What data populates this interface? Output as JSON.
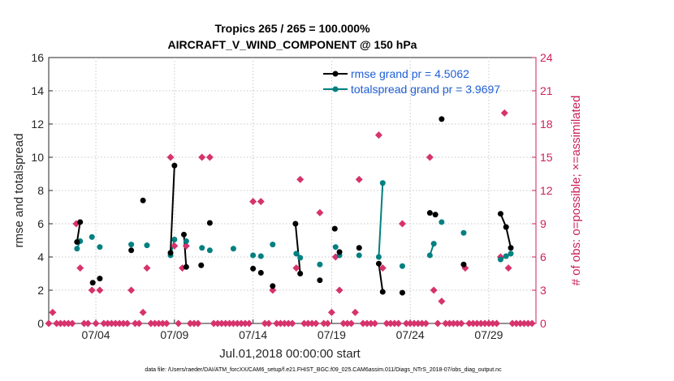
{
  "chart_data": {
    "type": "line",
    "title_line1": "Tropics 265 / 265 = 100.000%",
    "title_line2": "AIRCRAFT_V_WIND_COMPONENT @ 150 hPa",
    "xlabel": "Jul.01,2018 00:00:00 start",
    "ylabel_left": "rmse and totalspread",
    "ylabel_right": "# of obs: o=possible; ×=assimilated",
    "xlim": [
      1,
      32
    ],
    "ylim_left": [
      0,
      16
    ],
    "ylim_right": [
      0,
      24
    ],
    "x_ticks": [
      4,
      9,
      14,
      19,
      24,
      29
    ],
    "x_tick_labels": [
      "07/04",
      "07/09",
      "07/14",
      "07/19",
      "07/24",
      "07/29"
    ],
    "y_ticks_left": [
      "0",
      "2",
      "4",
      "6",
      "8",
      "10",
      "12",
      "14",
      "16"
    ],
    "y_ticks_right": [
      "0",
      "3",
      "6",
      "9",
      "12",
      "15",
      "18",
      "21",
      "24"
    ],
    "legend": {
      "position": "top-right",
      "entries": [
        "rmse grand pr = 4.5062",
        "totalspread grand pr = 3.9697"
      ]
    },
    "colors": {
      "rmse": "#000000",
      "totalspread": "#008080",
      "obs": "#d6336c",
      "right_axis": "#cc1f5c",
      "legend_text": "#1f5fd6"
    },
    "series": [
      {
        "name": "rmse",
        "points": [
          [
            2.8,
            4.9
          ],
          [
            3.0,
            6.1
          ],
          [
            3.8,
            2.45
          ],
          [
            4.25,
            2.7
          ],
          [
            6.25,
            4.4
          ],
          [
            7.0,
            7.4
          ],
          [
            8.75,
            4.25
          ],
          [
            9.0,
            9.5
          ],
          [
            9.6,
            5.35
          ],
          [
            9.75,
            3.4
          ],
          [
            10.7,
            3.5
          ],
          [
            11.25,
            6.05
          ],
          [
            14.0,
            3.3
          ],
          [
            14.5,
            3.05
          ],
          [
            15.25,
            2.25
          ],
          [
            16.7,
            6.0
          ],
          [
            17.0,
            3.0
          ],
          [
            18.25,
            2.6
          ],
          [
            19.2,
            5.7
          ],
          [
            19.5,
            4.3
          ],
          [
            20.75,
            4.55
          ],
          [
            22.0,
            3.6
          ],
          [
            22.25,
            1.9
          ],
          [
            23.5,
            1.85
          ],
          [
            25.25,
            6.65
          ],
          [
            25.6,
            6.55
          ],
          [
            26.0,
            12.3
          ],
          [
            27.4,
            3.55
          ],
          [
            29.75,
            6.6
          ],
          [
            30.1,
            5.8
          ],
          [
            30.4,
            4.55
          ]
        ],
        "segments": [
          [
            [
              2.8,
              4.9
            ],
            [
              3.0,
              6.1
            ]
          ],
          [
            [
              8.75,
              4.25
            ],
            [
              9.0,
              9.5
            ]
          ],
          [
            [
              9.6,
              5.35
            ],
            [
              9.75,
              3.4
            ]
          ],
          [
            [
              16.7,
              6.0
            ],
            [
              17.0,
              3.0
            ]
          ],
          [
            [
              22.0,
              3.6
            ],
            [
              22.25,
              1.9
            ]
          ],
          [
            [
              29.75,
              6.6
            ],
            [
              30.1,
              5.8
            ],
            [
              30.4,
              4.55
            ]
          ]
        ]
      },
      {
        "name": "totalspread",
        "points": [
          [
            2.8,
            4.5
          ],
          [
            3.0,
            4.95
          ],
          [
            3.75,
            5.2
          ],
          [
            4.25,
            4.6
          ],
          [
            6.25,
            4.75
          ],
          [
            7.25,
            4.7
          ],
          [
            8.75,
            4.1
          ],
          [
            9.0,
            5.05
          ],
          [
            9.75,
            4.95
          ],
          [
            10.75,
            4.55
          ],
          [
            11.25,
            4.4
          ],
          [
            12.75,
            4.5
          ],
          [
            14.0,
            4.1
          ],
          [
            14.5,
            4.05
          ],
          [
            15.25,
            4.75
          ],
          [
            16.75,
            4.2
          ],
          [
            17.0,
            3.95
          ],
          [
            18.25,
            3.55
          ],
          [
            19.25,
            4.6
          ],
          [
            19.5,
            4.1
          ],
          [
            20.75,
            4.1
          ],
          [
            22.0,
            4.0
          ],
          [
            22.25,
            8.45
          ],
          [
            23.5,
            3.45
          ],
          [
            25.25,
            4.1
          ],
          [
            25.5,
            4.8
          ],
          [
            26.0,
            6.1
          ],
          [
            27.4,
            5.45
          ],
          [
            29.75,
            3.85
          ],
          [
            30.1,
            4.05
          ],
          [
            30.4,
            4.2
          ]
        ],
        "segments": [
          [
            [
              2.8,
              4.5
            ],
            [
              3.0,
              4.95
            ]
          ],
          [
            [
              8.75,
              4.1
            ],
            [
              9.0,
              5.05
            ]
          ],
          [
            [
              16.75,
              4.2
            ],
            [
              17.0,
              3.95
            ]
          ],
          [
            [
              22.0,
              4.0
            ],
            [
              22.25,
              8.45
            ]
          ],
          [
            [
              25.25,
              4.1
            ],
            [
              25.5,
              4.8
            ]
          ],
          [
            [
              29.75,
              3.85
            ],
            [
              30.1,
              4.05
            ],
            [
              30.4,
              4.2
            ]
          ]
        ]
      },
      {
        "name": "obs_possible",
        "axis": "right",
        "points": [
          [
            1.0,
            0
          ],
          [
            1.25,
            1
          ],
          [
            1.5,
            0
          ],
          [
            1.75,
            0
          ],
          [
            2.0,
            0
          ],
          [
            2.25,
            0
          ],
          [
            2.5,
            0
          ],
          [
            2.75,
            9
          ],
          [
            3.0,
            5
          ],
          [
            3.25,
            0
          ],
          [
            3.5,
            0
          ],
          [
            3.75,
            3
          ],
          [
            4.0,
            0
          ],
          [
            4.25,
            3
          ],
          [
            4.5,
            0
          ],
          [
            4.75,
            0
          ],
          [
            5.0,
            0
          ],
          [
            5.25,
            0
          ],
          [
            5.5,
            0
          ],
          [
            5.75,
            0
          ],
          [
            6.0,
            0
          ],
          [
            6.25,
            3
          ],
          [
            6.5,
            0
          ],
          [
            6.75,
            0
          ],
          [
            7.0,
            1
          ],
          [
            7.25,
            5
          ],
          [
            7.5,
            0
          ],
          [
            7.75,
            0
          ],
          [
            8.0,
            0
          ],
          [
            8.25,
            0
          ],
          [
            8.5,
            0
          ],
          [
            8.75,
            15
          ],
          [
            9.0,
            7
          ],
          [
            9.25,
            0
          ],
          [
            9.5,
            5
          ],
          [
            9.75,
            7
          ],
          [
            10.0,
            0
          ],
          [
            10.25,
            0
          ],
          [
            10.5,
            0
          ],
          [
            10.75,
            15
          ],
          [
            11.25,
            15
          ],
          [
            11.5,
            0
          ],
          [
            11.75,
            0
          ],
          [
            12.0,
            0
          ],
          [
            12.25,
            0
          ],
          [
            12.5,
            0
          ],
          [
            12.75,
            0
          ],
          [
            13.0,
            0
          ],
          [
            13.25,
            0
          ],
          [
            13.5,
            0
          ],
          [
            13.75,
            0
          ],
          [
            14.0,
            11
          ],
          [
            14.5,
            11
          ],
          [
            14.75,
            0
          ],
          [
            15.0,
            0
          ],
          [
            15.25,
            3
          ],
          [
            15.5,
            0
          ],
          [
            15.75,
            0
          ],
          [
            16.0,
            0
          ],
          [
            16.25,
            0
          ],
          [
            16.5,
            0
          ],
          [
            16.75,
            5
          ],
          [
            17.0,
            13
          ],
          [
            17.25,
            0
          ],
          [
            17.5,
            0
          ],
          [
            17.75,
            0
          ],
          [
            18.0,
            0
          ],
          [
            18.25,
            10
          ],
          [
            18.5,
            0
          ],
          [
            18.75,
            0
          ],
          [
            19.0,
            1
          ],
          [
            19.25,
            6
          ],
          [
            19.5,
            3
          ],
          [
            19.75,
            0
          ],
          [
            20.0,
            0
          ],
          [
            20.25,
            0
          ],
          [
            20.5,
            1
          ],
          [
            20.75,
            13
          ],
          [
            21.0,
            0
          ],
          [
            21.25,
            0
          ],
          [
            21.5,
            0
          ],
          [
            21.75,
            0
          ],
          [
            22.0,
            17
          ],
          [
            22.25,
            5
          ],
          [
            22.5,
            0
          ],
          [
            22.75,
            0
          ],
          [
            23.0,
            0
          ],
          [
            23.25,
            0
          ],
          [
            23.5,
            9
          ],
          [
            23.75,
            0
          ],
          [
            24.0,
            0
          ],
          [
            24.25,
            0
          ],
          [
            24.5,
            0
          ],
          [
            24.75,
            0
          ],
          [
            25.0,
            0
          ],
          [
            25.25,
            15
          ],
          [
            25.5,
            3
          ],
          [
            25.75,
            0
          ],
          [
            26.0,
            2
          ],
          [
            26.25,
            0
          ],
          [
            26.5,
            0
          ],
          [
            26.75,
            0
          ],
          [
            27.0,
            0
          ],
          [
            27.25,
            0
          ],
          [
            27.5,
            5
          ],
          [
            27.75,
            0
          ],
          [
            28.0,
            0
          ],
          [
            28.25,
            0
          ],
          [
            28.5,
            0
          ],
          [
            28.75,
            0
          ],
          [
            29.0,
            0
          ],
          [
            29.25,
            0
          ],
          [
            29.5,
            0
          ],
          [
            29.75,
            6
          ],
          [
            30.0,
            19
          ],
          [
            30.25,
            5
          ],
          [
            30.5,
            0
          ],
          [
            30.75,
            0
          ],
          [
            31.0,
            0
          ],
          [
            31.25,
            0
          ],
          [
            31.5,
            0
          ],
          [
            31.75,
            0
          ]
        ]
      }
    ],
    "footnote": "data file: /Users/raeder/DAI/ATM_forcXX/CAM6_setup/f.e21.FHIST_BGC.f09_025.CAM6assim.011/Diags_NTrS_2018-07/obs_diag_output.nc"
  }
}
